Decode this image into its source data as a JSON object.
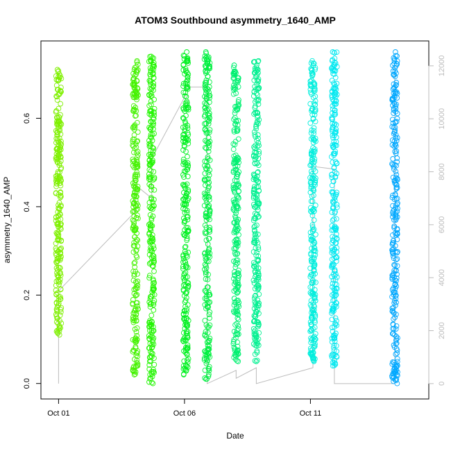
{
  "chart_data": {
    "type": "scatter",
    "title": "ATOM3 Southbound asymmetry_1640_AMP",
    "xlabel": "Date",
    "ylabel": "asymmetry_1640_AMP",
    "x_axis": {
      "unit": "days of October",
      "range": [
        0.3,
        15.7
      ],
      "ticks": [
        {
          "value": 1,
          "label": "Oct 01"
        },
        {
          "value": 6,
          "label": "Oct 06"
        },
        {
          "value": 11,
          "label": "Oct 11"
        }
      ]
    },
    "y_axis": {
      "range": [
        -0.035,
        0.775
      ],
      "ticks": [
        {
          "value": 0.0,
          "label": "0.0"
        },
        {
          "value": 0.2,
          "label": "0.2"
        },
        {
          "value": 0.4,
          "label": "0.4"
        },
        {
          "value": 0.6,
          "label": "0.6"
        }
      ]
    },
    "y2_axis": {
      "range": [
        -580,
        12940
      ],
      "color": "#bbbbbb",
      "ticks": [
        {
          "value": 0,
          "label": "0"
        },
        {
          "value": 2000,
          "label": "2000"
        },
        {
          "value": 4000,
          "label": "4000"
        },
        {
          "value": 6000,
          "label": "6000"
        },
        {
          "value": 8000,
          "label": "8000"
        },
        {
          "value": 10000,
          "label": "10000"
        },
        {
          "value": 12000,
          "label": "12000"
        }
      ]
    },
    "grid": false,
    "marker": "open-circle",
    "series": [
      {
        "x": 1.0,
        "ymin": 0.11,
        "ymax": 0.71,
        "color": "#7ff000"
      },
      {
        "x": 4.05,
        "ymin": 0.02,
        "ymax": 0.73,
        "color": "#44f200"
      },
      {
        "x": 4.7,
        "ymin": 0.0,
        "ymax": 0.74,
        "color": "#22f500"
      },
      {
        "x": 6.05,
        "ymin": 0.02,
        "ymax": 0.75,
        "color": "#00f020"
      },
      {
        "x": 6.9,
        "ymin": 0.01,
        "ymax": 0.75,
        "color": "#00f040"
      },
      {
        "x": 8.05,
        "ymin": 0.05,
        "ymax": 0.72,
        "color": "#00f070"
      },
      {
        "x": 8.85,
        "ymin": 0.05,
        "ymax": 0.73,
        "color": "#00f090"
      },
      {
        "x": 11.1,
        "ymin": 0.05,
        "ymax": 0.73,
        "color": "#00eedd"
      },
      {
        "x": 11.95,
        "ymin": 0.04,
        "ymax": 0.75,
        "color": "#00e8f0"
      },
      {
        "x": 14.35,
        "ymin": 0.0,
        "ymax": 0.75,
        "color": "#00a8ff"
      }
    ],
    "count_line": {
      "color": "#bbbbbb",
      "points": [
        [
          1.0,
          0
        ],
        [
          1.0,
          3500
        ],
        [
          4.05,
          6500
        ],
        [
          4.05,
          7500
        ],
        [
          4.7,
          7000
        ],
        [
          4.7,
          8500
        ],
        [
          6.05,
          10900
        ],
        [
          6.05,
          11200
        ],
        [
          6.9,
          11200
        ],
        [
          6.9,
          0
        ],
        [
          8.05,
          500
        ],
        [
          8.05,
          200
        ],
        [
          8.85,
          600
        ],
        [
          8.85,
          0
        ],
        [
          11.1,
          600
        ],
        [
          11.1,
          8200
        ],
        [
          11.95,
          8100
        ],
        [
          11.95,
          0
        ],
        [
          14.35,
          0
        ],
        [
          14.35,
          12000
        ]
      ]
    }
  }
}
